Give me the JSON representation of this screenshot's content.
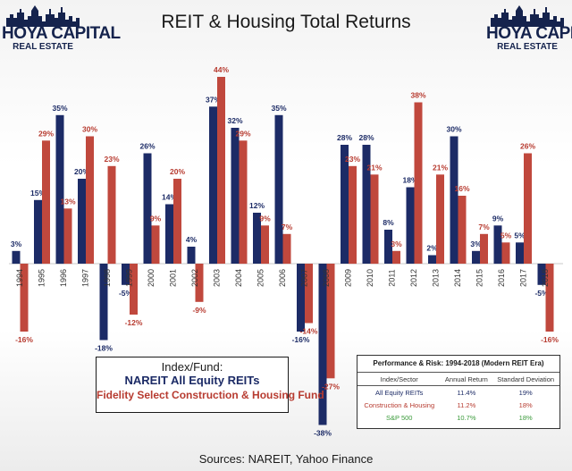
{
  "logo": {
    "name": "HOYA CAPITAL",
    "sub": "REAL ESTATE"
  },
  "colors": {
    "reit": "#1c2b66",
    "construction": "#c0483d",
    "sp500": "#3a9a3a"
  },
  "chart_data": {
    "type": "bar",
    "title": "REIT & Housing Total Returns",
    "categories": [
      "1994",
      "1995",
      "1996",
      "1997",
      "1998",
      "1999",
      "2000",
      "2001",
      "2002",
      "2003",
      "2004",
      "2005",
      "2006",
      "2007",
      "2008",
      "2009",
      "2010",
      "2011",
      "2012",
      "2013",
      "2014",
      "2015",
      "2016",
      "2017",
      "2018"
    ],
    "series": [
      {
        "name": "NAREIT All Equity REITs",
        "values": [
          3,
          15,
          35,
          20,
          -18,
          -5,
          26,
          14,
          4,
          37,
          32,
          12,
          35,
          -16,
          -38,
          28,
          28,
          8,
          18,
          2,
          30,
          3,
          9,
          5,
          -5
        ]
      },
      {
        "name": "Fidelity Select Construction & Housing Fund",
        "values": [
          -16,
          29,
          13,
          30,
          23,
          -12,
          9,
          20,
          -9,
          44,
          29,
          9,
          7,
          -14,
          -27,
          23,
          21,
          3,
          38,
          21,
          16,
          7,
          5,
          26,
          -16
        ]
      }
    ],
    "value_suffix": "%",
    "legend_title": "Index/Fund:",
    "legend_position": "bottom-left",
    "grid": false
  },
  "performance": {
    "title": "Performance & Risk: 1994-2018 (Modern REIT Era)",
    "headers": [
      "Index/Sector",
      "Annual Return",
      "Standard Deviation"
    ],
    "rows": [
      [
        "All Equity REITs",
        "11.4%",
        "19%"
      ],
      [
        "Construction & Housing",
        "11.2%",
        "18%"
      ],
      [
        "S&P 500",
        "10.7%",
        "18%"
      ]
    ]
  },
  "sources": "Sources: NAREIT, Yahoo Finance"
}
